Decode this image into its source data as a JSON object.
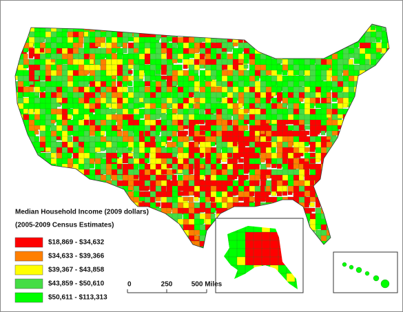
{
  "legend": {
    "title": "Median Household Income (2009 dollars)",
    "subtitle": "(2005-2009 Census Estimates)",
    "items": [
      {
        "label": "$18,869 - $34,632",
        "color": "#ff0000"
      },
      {
        "label": "$34,633 - $39,366",
        "color": "#ff7f00"
      },
      {
        "label": "$39,367 - $43,858",
        "color": "#ffff00"
      },
      {
        "label": "$43,859 - $50,610",
        "color": "#44dd44"
      },
      {
        "label": "$50,611 - $113,313",
        "color": "#00ff00"
      }
    ]
  },
  "scale_bar": {
    "labels": [
      "0",
      "250",
      "500 Miles"
    ]
  }
}
